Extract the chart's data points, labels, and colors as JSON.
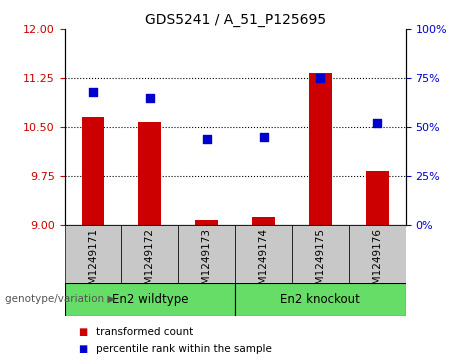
{
  "title": "GDS5241 / A_51_P125695",
  "categories": [
    "GSM1249171",
    "GSM1249172",
    "GSM1249173",
    "GSM1249174",
    "GSM1249175",
    "GSM1249176"
  ],
  "bar_values": [
    10.65,
    10.58,
    9.07,
    9.12,
    11.32,
    9.82
  ],
  "dot_values": [
    68,
    65,
    44,
    45,
    75,
    52
  ],
  "ylim_left": [
    9,
    12
  ],
  "ylim_right": [
    0,
    100
  ],
  "yticks_left": [
    9,
    9.75,
    10.5,
    11.25,
    12
  ],
  "yticks_right": [
    0,
    25,
    50,
    75,
    100
  ],
  "bar_color": "#cc0000",
  "dot_color": "#0000cc",
  "bg_color": "#ffffff",
  "group1_label": "En2 wildtype",
  "group2_label": "En2 knockout",
  "group_color": "#66dd66",
  "xticklabel_bg": "#c8c8c8",
  "genotype_label": "genotype/variation",
  "legend_items": [
    "transformed count",
    "percentile rank within the sample"
  ],
  "legend_colors": [
    "#cc0000",
    "#0000cc"
  ],
  "bar_width": 0.4,
  "dot_size": 30,
  "title_fontsize": 10,
  "tick_fontsize": 8,
  "xlabel_fontsize": 7.5
}
